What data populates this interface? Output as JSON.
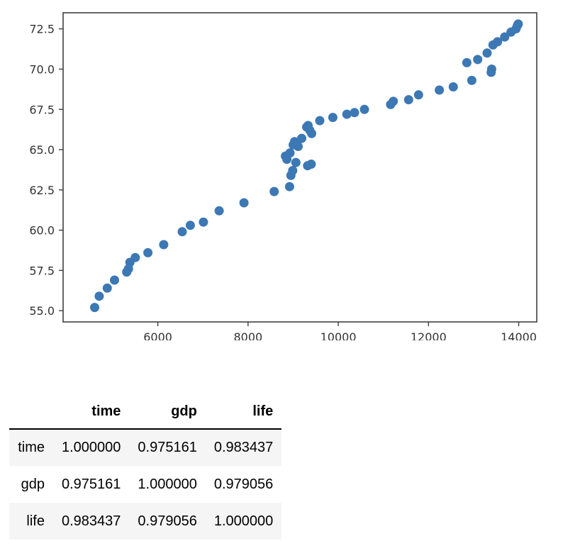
{
  "chart_data": {
    "type": "scatter",
    "title": "",
    "xlabel": "",
    "ylabel": "",
    "xlim": [
      3900,
      14400
    ],
    "ylim": [
      54.3,
      73.5
    ],
    "xticks": [
      6000,
      8000,
      10000,
      12000,
      14000
    ],
    "yticks": [
      55.0,
      57.5,
      60.0,
      62.5,
      65.0,
      67.5,
      70.0,
      72.5
    ],
    "xtick_labels": [
      "6000",
      "8000",
      "10000",
      "12000",
      "14000"
    ],
    "ytick_labels": [
      "55.0",
      "57.5",
      "60.0",
      "62.5",
      "65.0",
      "67.5",
      "70.0",
      "72.5"
    ],
    "grid": false,
    "color": "#3c78b4",
    "points": [
      [
        4600,
        55.2
      ],
      [
        4700,
        55.9
      ],
      [
        4880,
        56.4
      ],
      [
        5040,
        56.9
      ],
      [
        5310,
        57.4
      ],
      [
        5350,
        57.6
      ],
      [
        5380,
        58.0
      ],
      [
        5500,
        58.3
      ],
      [
        5780,
        58.6
      ],
      [
        6130,
        59.1
      ],
      [
        6540,
        59.9
      ],
      [
        6720,
        60.3
      ],
      [
        7010,
        60.5
      ],
      [
        7360,
        61.2
      ],
      [
        7910,
        61.7
      ],
      [
        8580,
        62.4
      ],
      [
        8920,
        62.7
      ],
      [
        8950,
        63.4
      ],
      [
        8990,
        63.7
      ],
      [
        9060,
        64.2
      ],
      [
        8830,
        64.6
      ],
      [
        8860,
        64.4
      ],
      [
        8930,
        64.8
      ],
      [
        9000,
        65.3
      ],
      [
        9030,
        65.5
      ],
      [
        9080,
        65.4
      ],
      [
        9110,
        65.2
      ],
      [
        9190,
        65.7
      ],
      [
        9300,
        66.4
      ],
      [
        9330,
        66.5
      ],
      [
        9370,
        66.2
      ],
      [
        9410,
        66.0
      ],
      [
        9320,
        64.0
      ],
      [
        9400,
        64.1
      ],
      [
        9590,
        66.8
      ],
      [
        9880,
        67.0
      ],
      [
        10190,
        67.2
      ],
      [
        10360,
        67.3
      ],
      [
        10580,
        67.5
      ],
      [
        11160,
        67.8
      ],
      [
        11220,
        68.0
      ],
      [
        11560,
        68.1
      ],
      [
        11780,
        68.4
      ],
      [
        12240,
        68.7
      ],
      [
        12550,
        68.9
      ],
      [
        12850,
        70.4
      ],
      [
        12960,
        69.3
      ],
      [
        13090,
        70.6
      ],
      [
        13300,
        71.0
      ],
      [
        13390,
        69.8
      ],
      [
        13400,
        70.0
      ],
      [
        13430,
        71.5
      ],
      [
        13530,
        71.7
      ],
      [
        13690,
        72.0
      ],
      [
        13830,
        72.3
      ],
      [
        13940,
        72.5
      ],
      [
        13970,
        72.7
      ],
      [
        13990,
        72.8
      ]
    ]
  },
  "table": {
    "columns": [
      "",
      "time",
      "gdp",
      "life"
    ],
    "rows": [
      {
        "label": "time",
        "values": [
          "1.000000",
          "0.975161",
          "0.983437"
        ]
      },
      {
        "label": "gdp",
        "values": [
          "0.975161",
          "1.000000",
          "0.979056"
        ]
      },
      {
        "label": "life",
        "values": [
          "0.983437",
          "0.979056",
          "1.000000"
        ]
      }
    ]
  }
}
